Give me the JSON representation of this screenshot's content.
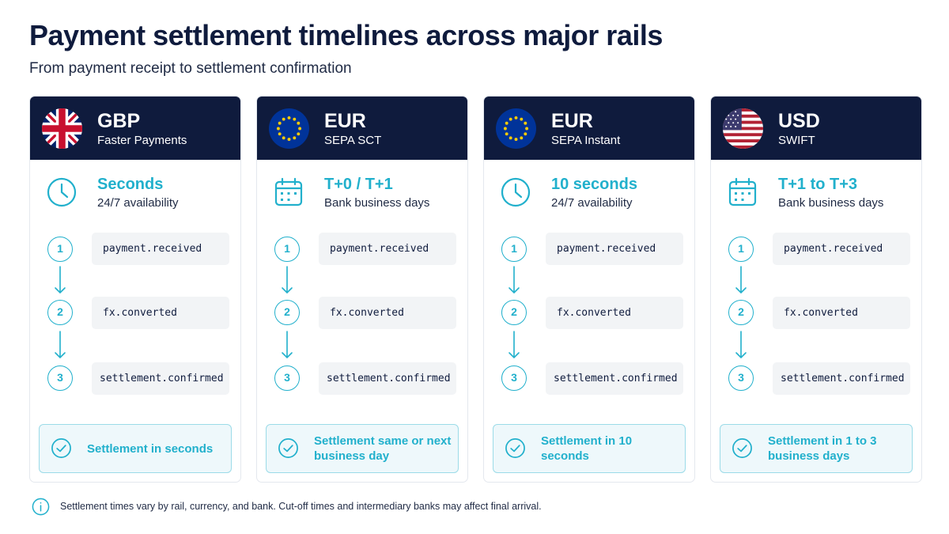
{
  "header": {
    "title": "Payment settlement timelines across major rails",
    "subtitle": "From payment receipt to settlement confirmation"
  },
  "colors": {
    "navy": "#0f1b3d",
    "accent": "#21b0cc",
    "event_bg": "#f2f4f6",
    "result_bg": "#eef8fb",
    "result_border": "#9bdbe8"
  },
  "cards": [
    {
      "currency": "GBP",
      "rail": "Faster Payments",
      "flag_icon": "uk-flag-icon",
      "time_icon": "clock-icon",
      "time_value": "Seconds",
      "time_note": "24/7 availability",
      "steps": [
        {
          "num": "1",
          "event": "payment.received"
        },
        {
          "num": "2",
          "event": "fx.converted"
        },
        {
          "num": "3",
          "event": "settlement.confirmed"
        }
      ],
      "result": "Settlement in seconds"
    },
    {
      "currency": "EUR",
      "rail": "SEPA SCT",
      "flag_icon": "eu-flag-icon",
      "time_icon": "calendar-icon",
      "time_value": "T+0 / T+1",
      "time_note": "Bank business days",
      "steps": [
        {
          "num": "1",
          "event": "payment.received"
        },
        {
          "num": "2",
          "event": "fx.converted"
        },
        {
          "num": "3",
          "event": "settlement.confirmed"
        }
      ],
      "result": "Settlement same or next business day"
    },
    {
      "currency": "EUR",
      "rail": "SEPA Instant",
      "flag_icon": "eu-flag-icon",
      "time_icon": "clock-icon",
      "time_value": "10 seconds",
      "time_note": "24/7 availability",
      "steps": [
        {
          "num": "1",
          "event": "payment.received"
        },
        {
          "num": "2",
          "event": "fx.converted"
        },
        {
          "num": "3",
          "event": "settlement.confirmed"
        }
      ],
      "result": "Settlement in 10 seconds"
    },
    {
      "currency": "USD",
      "rail": "SWIFT",
      "flag_icon": "us-flag-icon",
      "time_icon": "calendar-icon",
      "time_value": "T+1 to T+3",
      "time_note": "Bank business days",
      "steps": [
        {
          "num": "1",
          "event": "payment.received"
        },
        {
          "num": "2",
          "event": "fx.converted"
        },
        {
          "num": "3",
          "event": "settlement.confirmed"
        }
      ],
      "result": "Settlement in 1 to 3 business days"
    }
  ],
  "footer": {
    "icon": "info-icon",
    "note": "Settlement times vary by rail, currency, and bank. Cut-off times and intermediary banks may affect final arrival."
  }
}
